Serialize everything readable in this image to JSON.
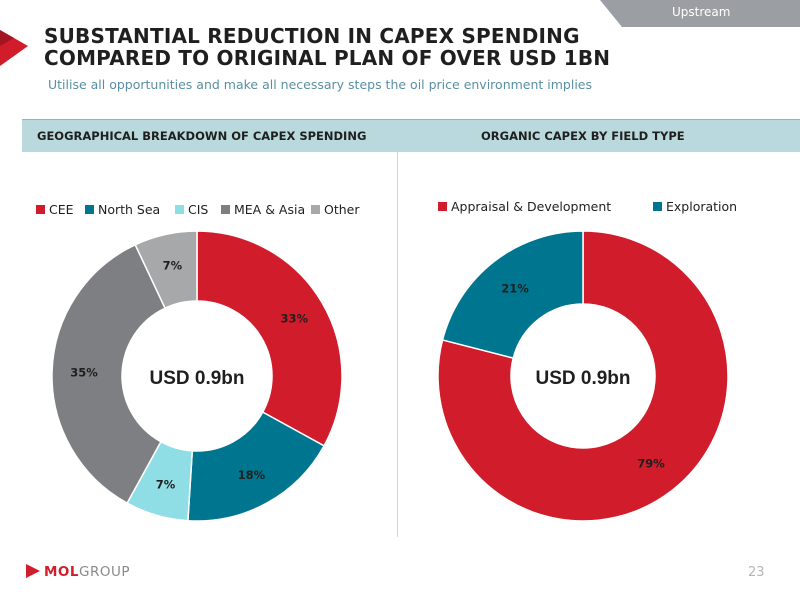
{
  "header": {
    "section_tab": "Upstream",
    "title_line1": "SUBSTANTIAL REDUCTION IN CAPEX SPENDING",
    "title_line2": "COMPARED TO ORIGINAL PLAN OF OVER USD 1BN",
    "subtitle": "Utilise all opportunities and make all necessary steps the oil price environment implies"
  },
  "band": {
    "left_title": "GEOGRAPHICAL BREAKDOWN OF CAPEX SPENDING",
    "right_title": "ORGANIC CAPEX BY FIELD TYPE"
  },
  "colors": {
    "accent_red": "#d01c2b",
    "teal": "#00758f",
    "light_blue": "#8fdde5",
    "dark_grey": "#7e7f82",
    "light_grey": "#a7a8aa",
    "band": "#b9d9dd"
  },
  "chart_data": [
    {
      "type": "pie",
      "variant": "donut",
      "center_label": "USD 0.9bn",
      "legend_position": "top",
      "categories": [
        "CEE",
        "North Sea",
        "CIS",
        "MEA & Asia",
        "Other"
      ],
      "values": [
        33,
        18,
        7,
        35,
        7
      ],
      "labels": [
        "33%",
        "18%",
        "7%",
        "35%",
        "7%"
      ],
      "colors": [
        "#d01c2b",
        "#00758f",
        "#8fdde5",
        "#7e7f82",
        "#a7a8aa"
      ]
    },
    {
      "type": "pie",
      "variant": "donut",
      "center_label": "USD 0.9bn",
      "legend_position": "top",
      "categories": [
        "Appraisal & Development",
        "Exploration"
      ],
      "values": [
        79,
        21
      ],
      "labels": [
        "79%",
        "21%"
      ],
      "colors": [
        "#d01c2b",
        "#00758f"
      ]
    }
  ],
  "footer": {
    "logo_bold": "MOL",
    "logo_light": "GROUP",
    "page_number": "23"
  }
}
